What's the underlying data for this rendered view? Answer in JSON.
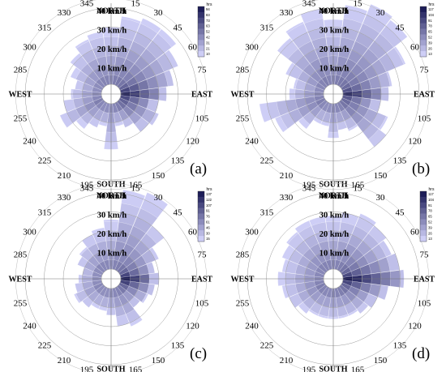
{
  "chart_data": [
    {
      "panel": "(a)",
      "type": "polar-heatmap",
      "directions": [
        0,
        15,
        30,
        45,
        60,
        75,
        90,
        105,
        120,
        135,
        150,
        165,
        180,
        195,
        210,
        225,
        240,
        255,
        270,
        285,
        300,
        315,
        330,
        345
      ],
      "direction_labels": [
        "NORTH",
        "15",
        "30",
        "45",
        "60",
        "75",
        "EAST",
        "105",
        "120",
        "135",
        "150",
        "165",
        "SOUTH",
        "195",
        "210",
        "225",
        "240",
        "255",
        "WEST",
        "285",
        "300",
        "315",
        "330",
        "345"
      ],
      "speed_labels": [
        "10 km/h",
        "20 km/h",
        "30 km/h",
        "40 km/h"
      ],
      "max_speed": [
        30,
        36,
        38,
        38,
        33,
        28,
        24,
        20,
        22,
        20,
        14,
        12,
        24,
        12,
        14,
        18,
        24,
        20,
        16,
        14,
        18,
        22,
        26,
        28
      ],
      "intensity": [
        0.3,
        0.34,
        0.36,
        0.38,
        0.45,
        0.58,
        0.75,
        0.56,
        0.46,
        0.4,
        0.34,
        0.3,
        0.28,
        0.27,
        0.27,
        0.3,
        0.34,
        0.3,
        0.28,
        0.27,
        0.28,
        0.3,
        0.32,
        0.32
      ],
      "legend": {
        "title": "hrs",
        "ticks": [
          "10",
          "21",
          "31",
          "42",
          "52",
          "63",
          "73",
          "83",
          "94"
        ]
      }
    },
    {
      "panel": "(b)",
      "type": "polar-heatmap",
      "directions": [
        0,
        15,
        30,
        45,
        60,
        75,
        90,
        105,
        120,
        135,
        150,
        165,
        180,
        195,
        210,
        225,
        240,
        255,
        270,
        285,
        300,
        315,
        330,
        345
      ],
      "direction_labels": [
        "NORTH",
        "15",
        "30",
        "45",
        "60",
        "75",
        "EAST",
        "105",
        "120",
        "135",
        "150",
        "165",
        "SOUTH",
        "195",
        "210",
        "225",
        "240",
        "255",
        "WEST",
        "285",
        "300",
        "315",
        "330",
        "345"
      ],
      "speed_labels": [
        "10 km/h",
        "20 km/h",
        "30 km/h",
        "40 km/h"
      ],
      "max_speed": [
        34,
        42,
        46,
        44,
        36,
        26,
        24,
        20,
        26,
        30,
        16,
        14,
        18,
        12,
        12,
        18,
        28,
        34,
        18,
        16,
        22,
        32,
        36,
        40
      ],
      "intensity": [
        0.3,
        0.34,
        0.36,
        0.38,
        0.42,
        0.52,
        0.72,
        0.5,
        0.42,
        0.38,
        0.32,
        0.3,
        0.28,
        0.27,
        0.27,
        0.3,
        0.34,
        0.32,
        0.3,
        0.28,
        0.3,
        0.32,
        0.34,
        0.32
      ],
      "legend": {
        "title": "hrs",
        "ticks": [
          "13",
          "26",
          "39",
          "52",
          "65",
          "78",
          "91",
          "104",
          "117"
        ]
      }
    },
    {
      "panel": "(c)",
      "type": "polar-heatmap",
      "directions": [
        0,
        15,
        30,
        45,
        60,
        75,
        90,
        105,
        120,
        135,
        150,
        165,
        180,
        195,
        210,
        225,
        240,
        255,
        270,
        285,
        300,
        315,
        330,
        345
      ],
      "direction_labels": [
        "NORTH",
        "15",
        "30",
        "45",
        "60",
        "75",
        "EAST",
        "105",
        "120",
        "135",
        "150",
        "165",
        "SOUTH",
        "195",
        "210",
        "225",
        "240",
        "255",
        "WEST",
        "285",
        "300",
        "315",
        "330",
        "345"
      ],
      "speed_labels": [
        "10 km/h",
        "20 km/h",
        "30 km/h",
        "40 km/h"
      ],
      "max_speed": [
        26,
        42,
        44,
        30,
        22,
        18,
        20,
        18,
        16,
        14,
        22,
        20,
        14,
        12,
        12,
        14,
        16,
        14,
        12,
        10,
        14,
        16,
        20,
        22
      ],
      "intensity": [
        0.28,
        0.32,
        0.34,
        0.38,
        0.44,
        0.58,
        0.78,
        0.6,
        0.44,
        0.36,
        0.32,
        0.3,
        0.28,
        0.27,
        0.27,
        0.28,
        0.3,
        0.28,
        0.27,
        0.27,
        0.28,
        0.3,
        0.3,
        0.3
      ],
      "legend": {
        "title": "hrs",
        "ticks": [
          "15",
          "30",
          "46",
          "61",
          "76",
          "91",
          "107",
          "122",
          "137"
        ]
      }
    },
    {
      "panel": "(d)",
      "type": "polar-heatmap",
      "directions": [
        0,
        15,
        30,
        45,
        60,
        75,
        90,
        105,
        120,
        135,
        150,
        165,
        180,
        195,
        210,
        225,
        240,
        255,
        270,
        285,
        300,
        315,
        330,
        345
      ],
      "direction_labels": [
        "NORTH",
        "15",
        "30",
        "45",
        "60",
        "75",
        "EAST",
        "105",
        "120",
        "135",
        "150",
        "165",
        "SOUTH",
        "195",
        "210",
        "225",
        "240",
        "255",
        "WEST",
        "285",
        "300",
        "315",
        "330",
        "345"
      ],
      "speed_labels": [
        "10 km/h",
        "20 km/h",
        "30 km/h",
        "40 km/h"
      ],
      "max_speed": [
        28,
        30,
        32,
        30,
        28,
        30,
        32,
        24,
        20,
        18,
        16,
        16,
        16,
        16,
        16,
        18,
        20,
        22,
        24,
        22,
        24,
        26,
        28,
        28
      ],
      "intensity": [
        0.3,
        0.32,
        0.34,
        0.38,
        0.44,
        0.56,
        0.8,
        0.58,
        0.44,
        0.38,
        0.34,
        0.32,
        0.3,
        0.3,
        0.3,
        0.32,
        0.34,
        0.32,
        0.3,
        0.3,
        0.3,
        0.32,
        0.32,
        0.32
      ],
      "legend": {
        "title": "hrs",
        "ticks": [
          "13",
          "26",
          "39",
          "52",
          "65",
          "78",
          "91",
          "104",
          "117"
        ]
      }
    }
  ]
}
